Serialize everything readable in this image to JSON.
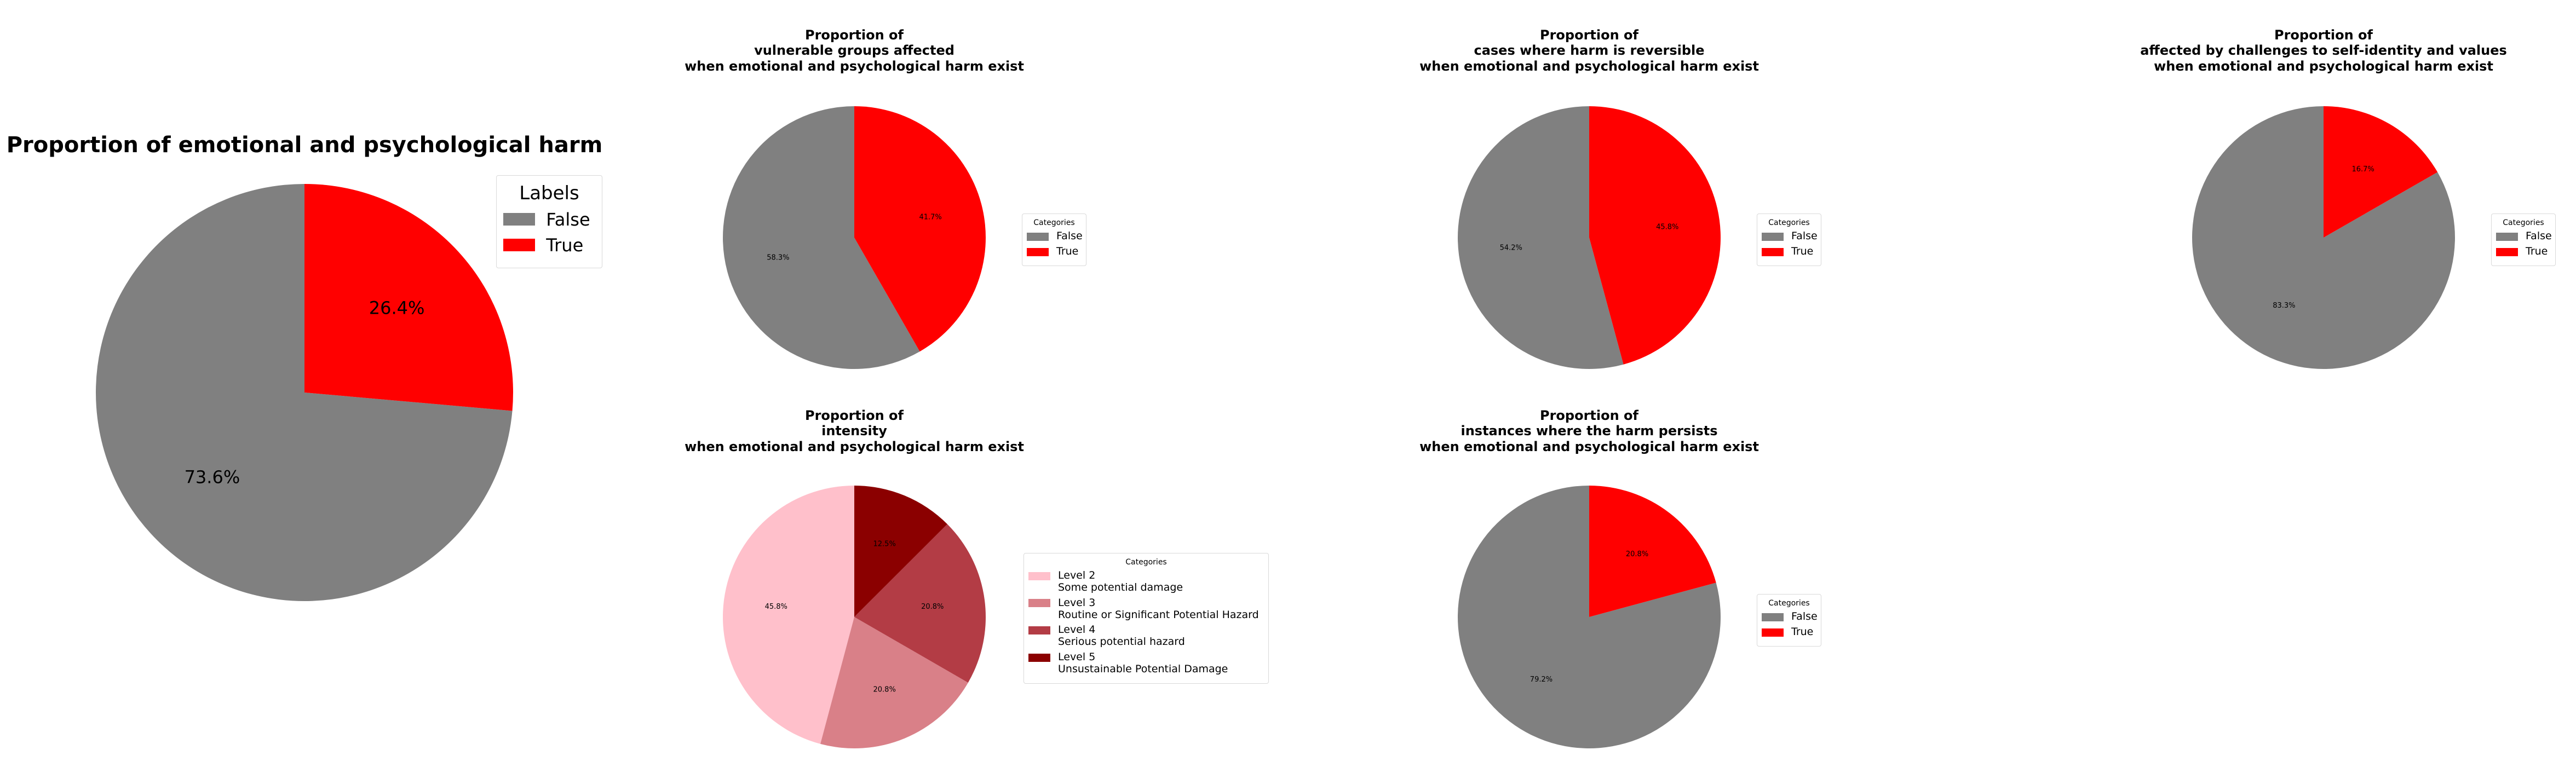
{
  "chart_data": [
    {
      "type": "pie",
      "title": "Proportion of emotional and psychological harm",
      "legend_title": "Labels",
      "legend_location": "upper right",
      "slices": [
        {
          "label": "False",
          "value": 73.6,
          "pct_label": "73.6%",
          "color": "#808080"
        },
        {
          "label": "True",
          "value": 26.4,
          "pct_label": "26.4%",
          "color": "#ff0000"
        }
      ]
    },
    {
      "type": "pie",
      "title": "Proportion of\nvulnerable groups affected\nwhen emotional and psychological harm exist",
      "legend_title": "Categories",
      "legend_location": "right",
      "slices": [
        {
          "label": "False",
          "value": 58.3,
          "pct_label": "58.3%",
          "color": "#808080"
        },
        {
          "label": "True",
          "value": 41.7,
          "pct_label": "41.7%",
          "color": "#ff0000"
        }
      ]
    },
    {
      "type": "pie",
      "title": "Proportion of\ncases where harm is reversible\nwhen emotional and psychological harm exist",
      "legend_title": "Categories",
      "legend_location": "right",
      "slices": [
        {
          "label": "False",
          "value": 54.2,
          "pct_label": "54.2%",
          "color": "#808080"
        },
        {
          "label": "True",
          "value": 45.8,
          "pct_label": "45.8%",
          "color": "#ff0000"
        }
      ]
    },
    {
      "type": "pie",
      "title": "Proportion of\naffected by challenges to self-identity and values\nwhen emotional and psychological harm exist",
      "legend_title": "Categories",
      "legend_location": "right",
      "slices": [
        {
          "label": "False",
          "value": 83.3,
          "pct_label": "83.3%",
          "color": "#808080"
        },
        {
          "label": "True",
          "value": 16.7,
          "pct_label": "16.7%",
          "color": "#ff0000"
        }
      ]
    },
    {
      "type": "pie",
      "title": "Proportion of\nintensity\nwhen emotional and psychological harm exist",
      "legend_title": "Categories",
      "legend_location": "right",
      "slices": [
        {
          "label": "Level 2\nSome potential damage",
          "value": 45.8,
          "pct_label": "45.8%",
          "color": "#ffc0cb"
        },
        {
          "label": "Level 3\nRoutine or Significant Potential Hazard",
          "value": 20.8,
          "pct_label": "20.8%",
          "color": "#d98088"
        },
        {
          "label": "Level 4\nSerious potential hazard",
          "value": 20.8,
          "pct_label": "20.8%",
          "color": "#b33c45"
        },
        {
          "label": "Level 5\nUnsustainable Potential Damage",
          "value": 12.5,
          "pct_label": "12.5%",
          "color": "#8b0000"
        }
      ]
    },
    {
      "type": "pie",
      "title": "Proportion of\ninstances where the harm persists\nwhen emotional and psychological harm exist",
      "legend_title": "Categories",
      "legend_location": "right",
      "slices": [
        {
          "label": "False",
          "value": 79.2,
          "pct_label": "79.2%",
          "color": "#808080"
        },
        {
          "label": "True",
          "value": 20.8,
          "pct_label": "20.8%",
          "color": "#ff0000"
        }
      ]
    }
  ]
}
